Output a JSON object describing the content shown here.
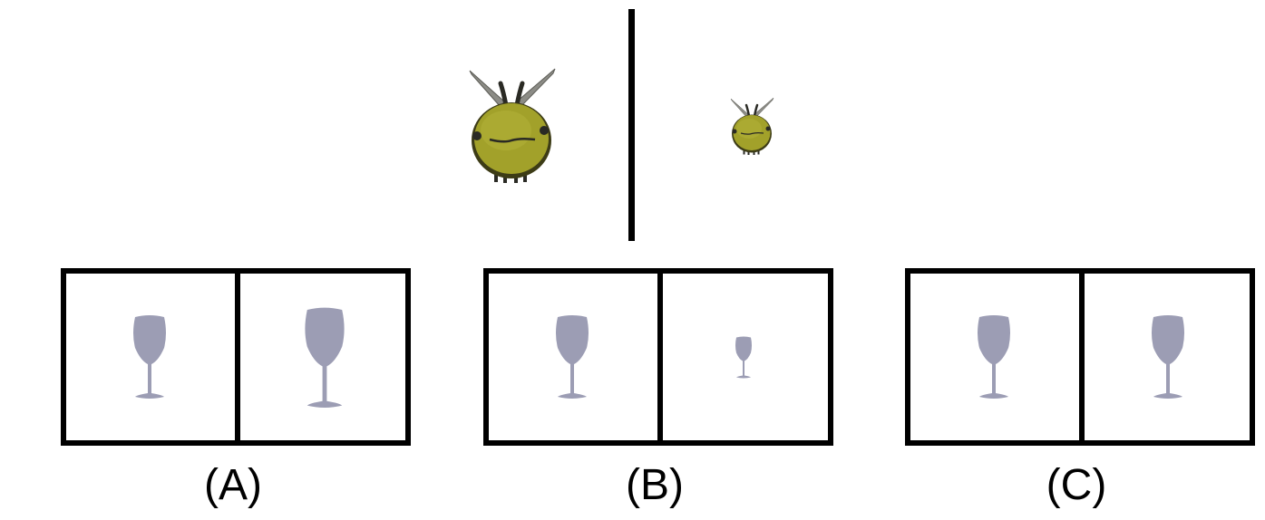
{
  "question": {
    "reference_pair": {
      "left": "bee-large",
      "right": "bee-small",
      "colors": {
        "body": "#a2a12a",
        "body_dark": "#6e6d14",
        "wings": "#8c8c86",
        "antenna": "#2a2a24"
      }
    }
  },
  "options": [
    {
      "label": "(A)",
      "left": "wine-glass-medium",
      "right": "wine-glass-large"
    },
    {
      "label": "(B)",
      "left": "wine-glass-medium",
      "right": "wine-glass-small"
    },
    {
      "label": "(C)",
      "left": "wine-glass-medium",
      "right": "wine-glass-medium"
    }
  ],
  "glass_color": "#9c9db4"
}
